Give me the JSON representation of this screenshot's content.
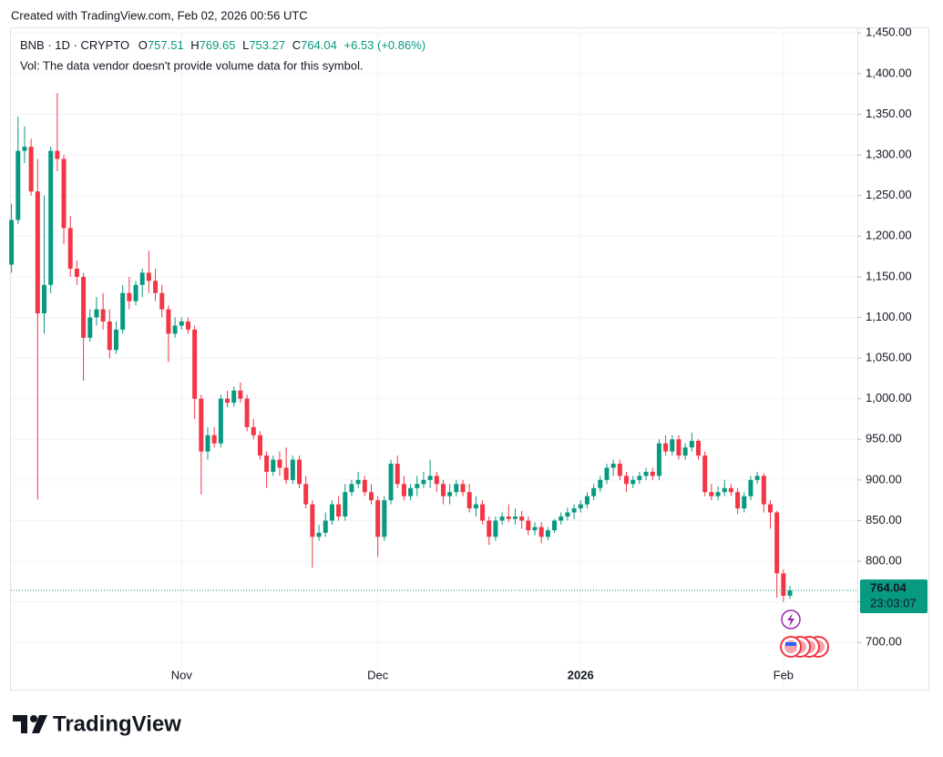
{
  "chart_data": {
    "type": "candlestick",
    "watermark": "Created with TradingView.com, Feb 02, 2026 00:56 UTC",
    "symbol": "BNB · 1D · CRYPTO",
    "legend_labels": {
      "open": "O",
      "high": "H",
      "low": "L",
      "close": "C"
    },
    "change": "+6.53 (+0.86%)",
    "volume_note": "Vol: The data vendor doesn't provide volume data for this symbol.",
    "countdown": "23:03:07",
    "brand": "TradingView",
    "up_color": "#089981",
    "down_color": "#f23645",
    "grid": true,
    "ylim": [
      642,
      1457
    ],
    "yticks": [
      {
        "value": 700,
        "label": "700.00"
      },
      {
        "value": 750,
        "label": "750.00"
      },
      {
        "value": 800,
        "label": "800.00"
      },
      {
        "value": 850,
        "label": "850.00"
      },
      {
        "value": 900,
        "label": "900.00"
      },
      {
        "value": 950,
        "label": "950.00"
      },
      {
        "value": 1000,
        "label": "1,000.00"
      },
      {
        "value": 1050,
        "label": "1,050.00"
      },
      {
        "value": 1100,
        "label": "1,100.00"
      },
      {
        "value": 1150,
        "label": "1,150.00"
      },
      {
        "value": 1200,
        "label": "1,200.00"
      },
      {
        "value": 1250,
        "label": "1,250.00"
      },
      {
        "value": 1300,
        "label": "1,300.00"
      },
      {
        "value": 1350,
        "label": "1,350.00"
      },
      {
        "value": 1400,
        "label": "1,400.00"
      },
      {
        "value": 1450,
        "label": "1,450.00"
      }
    ],
    "categories": [
      null,
      null,
      null,
      null,
      null,
      null,
      null,
      null,
      null,
      null,
      null,
      null,
      null,
      null,
      null,
      null,
      null,
      null,
      null,
      null,
      null,
      null,
      null,
      null,
      null,
      null,
      "Nov",
      null,
      null,
      null,
      null,
      null,
      null,
      null,
      null,
      null,
      null,
      null,
      null,
      null,
      null,
      null,
      null,
      null,
      null,
      null,
      null,
      null,
      null,
      null,
      null,
      null,
      null,
      null,
      null,
      null,
      "Dec",
      null,
      null,
      null,
      null,
      null,
      null,
      null,
      null,
      null,
      null,
      null,
      null,
      null,
      null,
      null,
      null,
      null,
      null,
      null,
      null,
      null,
      null,
      null,
      null,
      null,
      null,
      null,
      null,
      null,
      null,
      "2026",
      null,
      null,
      null,
      null,
      null,
      null,
      null,
      null,
      null,
      null,
      null,
      null,
      null,
      null,
      null,
      null,
      null,
      null,
      null,
      null,
      null,
      null,
      null,
      null,
      null,
      null,
      null,
      null,
      null,
      null,
      "Feb",
      null
    ],
    "open": [
      1165,
      1220,
      1305,
      1310,
      1255,
      1105,
      1140,
      1305,
      1295,
      1210,
      1160,
      1150,
      1075,
      1100,
      1110,
      1095,
      1060,
      1085,
      1130,
      1120,
      1140,
      1155,
      1145,
      1130,
      1110,
      1080,
      1090,
      1095,
      1085,
      1000,
      935,
      955,
      945,
      1000,
      995,
      1010,
      1000,
      965,
      955,
      930,
      910,
      925,
      915,
      900,
      925,
      895,
      870,
      830,
      835,
      850,
      870,
      855,
      885,
      895,
      900,
      885,
      875,
      830,
      875,
      920,
      895,
      880,
      890,
      895,
      900,
      905,
      895,
      880,
      885,
      895,
      885,
      865,
      870,
      850,
      830,
      850,
      855,
      852,
      855,
      850,
      838,
      842,
      830,
      838,
      850,
      855,
      860,
      865,
      870,
      880,
      890,
      900,
      915,
      920,
      905,
      895,
      900,
      905,
      910,
      905,
      945,
      935,
      950,
      930,
      940,
      948,
      930,
      885,
      880,
      885,
      890,
      885,
      865,
      880,
      900,
      905,
      870,
      860,
      785,
      757.51
    ],
    "high": [
      1240,
      1347,
      1335,
      1320,
      1295,
      1250,
      1310,
      1376,
      1300,
      1225,
      1170,
      1155,
      1110,
      1125,
      1130,
      1110,
      1095,
      1140,
      1150,
      1145,
      1160,
      1182,
      1160,
      1140,
      1115,
      1100,
      1100,
      1100,
      1090,
      1005,
      965,
      965,
      1005,
      1010,
      1015,
      1020,
      1005,
      975,
      960,
      935,
      930,
      935,
      940,
      930,
      930,
      905,
      875,
      845,
      860,
      875,
      880,
      895,
      900,
      910,
      905,
      895,
      880,
      880,
      925,
      930,
      905,
      895,
      905,
      910,
      925,
      910,
      900,
      895,
      900,
      900,
      895,
      880,
      875,
      855,
      855,
      860,
      870,
      865,
      862,
      855,
      848,
      848,
      842,
      852,
      860,
      866,
      870,
      875,
      885,
      895,
      905,
      920,
      925,
      925,
      910,
      905,
      910,
      915,
      915,
      950,
      955,
      955,
      955,
      945,
      958,
      950,
      935,
      895,
      892,
      900,
      895,
      890,
      885,
      905,
      910,
      908,
      875,
      862,
      790,
      769.65
    ],
    "low": [
      1155,
      1215,
      1290,
      1250,
      876,
      1080,
      1130,
      1280,
      1190,
      1150,
      1140,
      1022,
      1070,
      1090,
      1085,
      1050,
      1055,
      1080,
      1110,
      1115,
      1125,
      1130,
      1120,
      1100,
      1045,
      1075,
      1085,
      1080,
      975,
      882,
      925,
      940,
      940,
      990,
      990,
      995,
      960,
      950,
      925,
      890,
      905,
      905,
      895,
      895,
      890,
      865,
      792,
      825,
      830,
      845,
      850,
      850,
      880,
      890,
      880,
      870,
      805,
      825,
      870,
      890,
      875,
      875,
      880,
      890,
      890,
      885,
      870,
      870,
      880,
      880,
      860,
      855,
      845,
      820,
      825,
      845,
      848,
      845,
      840,
      832,
      832,
      822,
      826,
      835,
      845,
      850,
      852,
      860,
      865,
      875,
      885,
      895,
      905,
      900,
      885,
      890,
      895,
      900,
      900,
      900,
      930,
      930,
      925,
      925,
      935,
      925,
      880,
      875,
      875,
      880,
      880,
      858,
      860,
      875,
      895,
      860,
      840,
      755,
      750,
      753.27
    ],
    "close": [
      1220,
      1305,
      1310,
      1255,
      1105,
      1140,
      1305,
      1295,
      1210,
      1160,
      1150,
      1075,
      1100,
      1110,
      1095,
      1060,
      1085,
      1130,
      1120,
      1140,
      1155,
      1145,
      1130,
      1110,
      1080,
      1090,
      1095,
      1085,
      1000,
      935,
      955,
      945,
      1000,
      995,
      1010,
      1000,
      965,
      955,
      930,
      910,
      925,
      915,
      900,
      925,
      895,
      870,
      830,
      835,
      850,
      870,
      855,
      885,
      895,
      900,
      885,
      875,
      830,
      875,
      920,
      895,
      880,
      890,
      895,
      900,
      905,
      895,
      880,
      885,
      895,
      885,
      865,
      870,
      850,
      830,
      850,
      855,
      852,
      855,
      850,
      838,
      842,
      830,
      838,
      850,
      855,
      860,
      865,
      870,
      880,
      890,
      900,
      915,
      920,
      905,
      895,
      900,
      905,
      910,
      905,
      945,
      935,
      950,
      930,
      940,
      948,
      930,
      885,
      880,
      885,
      890,
      885,
      865,
      880,
      900,
      905,
      870,
      860,
      785,
      757.51,
      764.04
    ]
  }
}
